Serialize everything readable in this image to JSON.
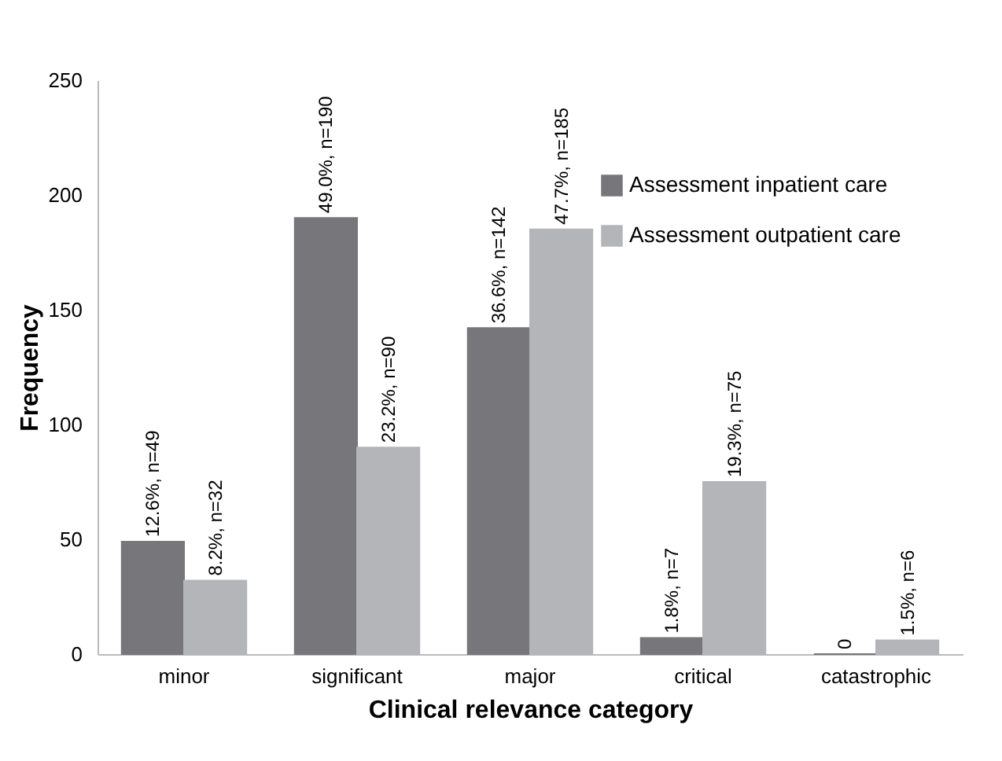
{
  "chart_data": {
    "type": "bar",
    "xlabel": "Clinical relevance category",
    "ylabel": "Frequency",
    "categories": [
      "minor",
      "significant",
      "major",
      "critical",
      "catastrophic"
    ],
    "series": [
      {
        "name": "Assessment inpatient care",
        "color": "#76767b",
        "values": [
          49,
          190,
          142,
          7,
          0
        ],
        "value_labels": [
          "12.6%, n=49",
          "49.0%, n=190",
          "36.6%, n=142",
          "1.8%, n=7",
          "0"
        ]
      },
      {
        "name": "Assessment outpatient care",
        "color": "#b3b5b9",
        "values": [
          32,
          90,
          185,
          75,
          6
        ],
        "value_labels": [
          "8.2%, n=32",
          "23.2%, n=90",
          "47.7%, n=185",
          "19.3%, n=75",
          "1.5%, n=6"
        ]
      }
    ],
    "ylim": [
      0,
      250
    ],
    "yticks": [
      0,
      50,
      100,
      150,
      200,
      250
    ],
    "grid": false,
    "legend": "top right"
  }
}
